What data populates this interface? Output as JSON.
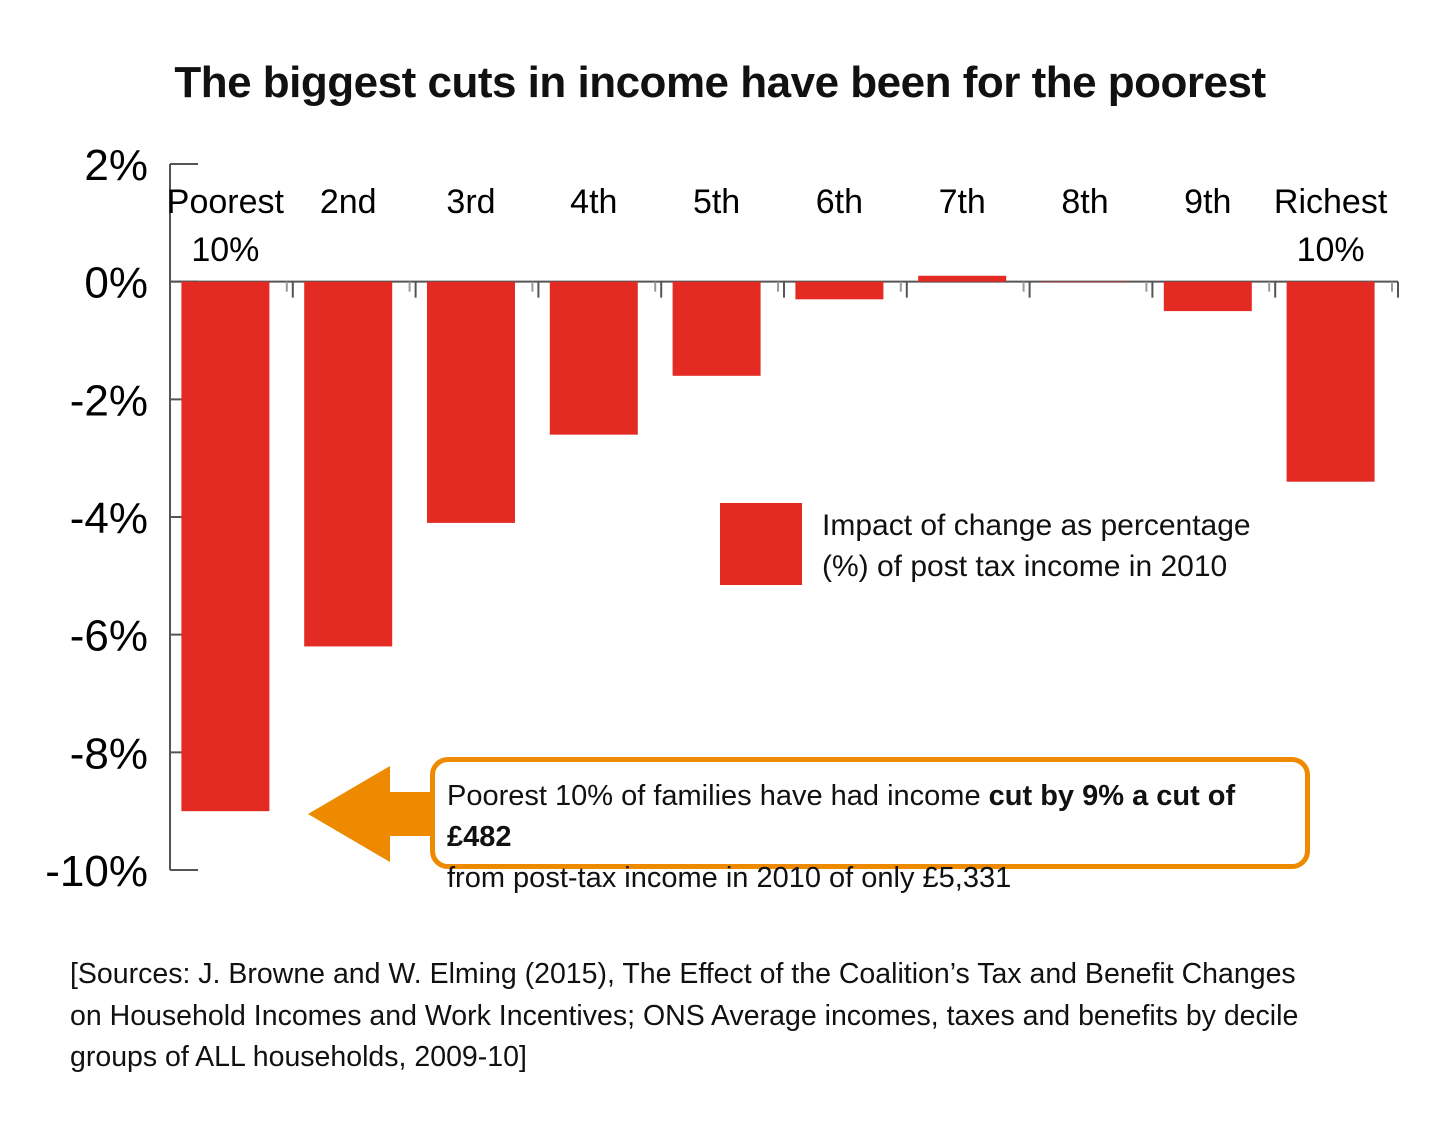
{
  "chart_data": {
    "type": "bar",
    "title": "The biggest cuts in income have been for the poorest",
    "categories": [
      "Poorest\n10%",
      "2nd",
      "3rd",
      "4th",
      "5th",
      "6th",
      "7th",
      "8th",
      "9th",
      "Richest\n10%"
    ],
    "series": [
      {
        "name": "Impact of change as percentage (%) of post tax income in 2010",
        "values": [
          -9.0,
          -6.2,
          -4.1,
          -2.6,
          -1.6,
          -0.3,
          0.1,
          0.0,
          -0.5,
          -3.4
        ]
      }
    ],
    "ylim": [
      -10,
      2
    ],
    "yticks": [
      "2%",
      "0%",
      "-2%",
      "-4%",
      "-6%",
      "-8%",
      "-10%"
    ],
    "ytick_values": [
      2,
      0,
      -2,
      -4,
      -6,
      -8,
      -10
    ],
    "grid": false,
    "legend_position": "center-right",
    "bar_color": "#e32a23"
  },
  "annotation": {
    "text_plain": "Poorest 10% of families have had income ",
    "text_bold": "cut by 9% a cut of £482",
    "text_line2": "from post-tax income in 2010 of only £5,331",
    "border_color": "#ee8a00",
    "arrow_color": "#ee8a00"
  },
  "sources": {
    "line1": "[Sources: J. Browne and W. Elming (2015), The Effect of the Coalition’s Tax and Benefit Changes",
    "line2": "on Household Incomes and Work Incentives; ONS Average incomes, taxes and benefits by decile",
    "line3": "groups of ALL households, 2009-10]"
  }
}
